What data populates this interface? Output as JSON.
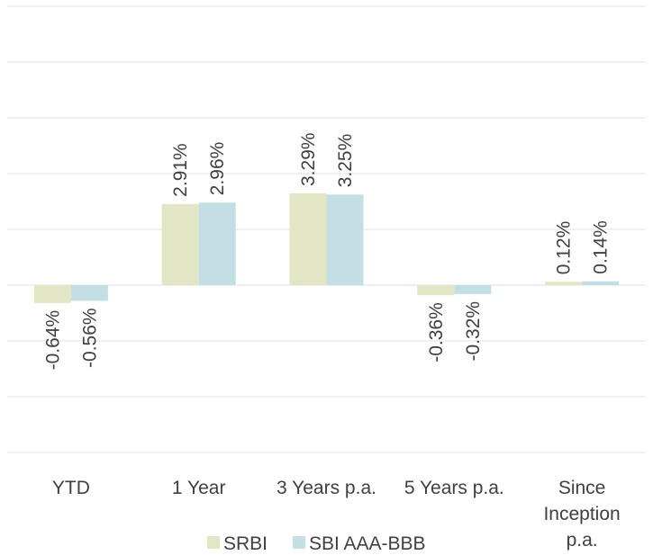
{
  "chart_data": {
    "type": "bar",
    "categories": [
      "YTD",
      "1 Year",
      "3 Years p.a.",
      "5 Years p.a.",
      "Since Inception p.a."
    ],
    "category_lines": [
      [
        "YTD"
      ],
      [
        "1 Year"
      ],
      [
        "3 Years p.a."
      ],
      [
        "5 Years p.a."
      ],
      [
        "Since",
        "Inception",
        "p.a."
      ]
    ],
    "series": [
      {
        "name": "SRBI",
        "values": [
          -0.64,
          2.91,
          3.29,
          -0.36,
          0.12
        ],
        "labels": [
          "-0.64%",
          "2.91%",
          "3.29%",
          "-0.36%",
          "0.12%"
        ],
        "color": "#e2e6c5"
      },
      {
        "name": "SBI AAA-BBB",
        "values": [
          -0.56,
          2.96,
          3.25,
          -0.32,
          0.14
        ],
        "labels": [
          "-0.56%",
          "2.96%",
          "3.25%",
          "-0.32%",
          "0.14%"
        ],
        "color": "#c3dfe5"
      }
    ],
    "ylim": [
      -6,
      10
    ],
    "gridline_step": 2,
    "grid": true,
    "gridline_color": "#e6e6e6",
    "legend_position": "bottom"
  }
}
